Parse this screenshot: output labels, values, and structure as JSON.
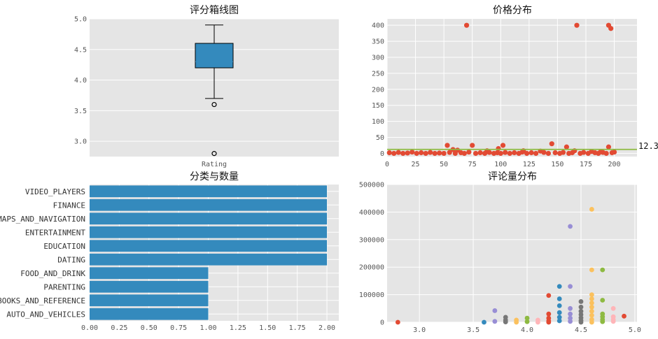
{
  "chart_data": [
    {
      "type": "box",
      "title": "评分箱线图",
      "categories": [
        "Rating"
      ],
      "box": {
        "whisker_low": 3.7,
        "q1": 4.2,
        "median": 4.3,
        "q3": 4.6,
        "whisker_high": 4.9,
        "outliers": [
          3.6,
          2.8
        ]
      },
      "ylim": [
        2.75,
        5.0
      ],
      "yticks": [
        3.0,
        3.5,
        4.0,
        4.5,
        5.0
      ],
      "ytick_labels": [
        "3.0",
        "3.5",
        "4.0",
        "4.5",
        "5.0"
      ],
      "box_color": "#348ABD",
      "grid": true
    },
    {
      "type": "scatter",
      "title": "价格分布",
      "xlim": [
        0,
        220
      ],
      "ylim": [
        -10,
        420
      ],
      "xticks": [
        0,
        25,
        50,
        75,
        100,
        125,
        150,
        175,
        200
      ],
      "xtick_labels": [
        "0",
        "25",
        "50",
        "75",
        "100",
        "125",
        "150",
        "175",
        "200"
      ],
      "yticks": [
        0,
        50,
        100,
        150,
        200,
        250,
        300,
        350,
        400
      ],
      "ytick_labels": [
        "0",
        "50",
        "100",
        "150",
        "200",
        "250",
        "300",
        "350",
        "400"
      ],
      "mean_line": {
        "value": 12.3,
        "label": "12.3",
        "color": "#8EBA42"
      },
      "point_color": "#E24A33",
      "points": [
        [
          70,
          400
        ],
        [
          167,
          400
        ],
        [
          195,
          400
        ],
        [
          197,
          390
        ],
        [
          53,
          25
        ],
        [
          75,
          25
        ],
        [
          102,
          25
        ],
        [
          145,
          30
        ],
        [
          158,
          20
        ],
        [
          195,
          20
        ],
        [
          58,
          12
        ],
        [
          62,
          10
        ],
        [
          88,
          8
        ],
        [
          98,
          15
        ],
        [
          120,
          8
        ],
        [
          135,
          7
        ],
        [
          165,
          8
        ],
        [
          180,
          6
        ],
        [
          188,
          5
        ],
        [
          2,
          2
        ],
        [
          6,
          0
        ],
        [
          10,
          3
        ],
        [
          14,
          0
        ],
        [
          18,
          1
        ],
        [
          22,
          4
        ],
        [
          26,
          0
        ],
        [
          30,
          2
        ],
        [
          34,
          0
        ],
        [
          38,
          3
        ],
        [
          42,
          0
        ],
        [
          46,
          1
        ],
        [
          50,
          0
        ],
        [
          55,
          3
        ],
        [
          60,
          0
        ],
        [
          65,
          2
        ],
        [
          68,
          0
        ],
        [
          72,
          4
        ],
        [
          78,
          0
        ],
        [
          82,
          2
        ],
        [
          86,
          0
        ],
        [
          90,
          3
        ],
        [
          94,
          0
        ],
        [
          97,
          2
        ],
        [
          100,
          0
        ],
        [
          104,
          3
        ],
        [
          108,
          0
        ],
        [
          112,
          2
        ],
        [
          116,
          0
        ],
        [
          119,
          4
        ],
        [
          123,
          0
        ],
        [
          127,
          2
        ],
        [
          131,
          0
        ],
        [
          138,
          3
        ],
        [
          142,
          0
        ],
        [
          148,
          2
        ],
        [
          152,
          0
        ],
        [
          155,
          3
        ],
        [
          160,
          0
        ],
        [
          163,
          2
        ],
        [
          170,
          0
        ],
        [
          173,
          3
        ],
        [
          177,
          0
        ],
        [
          183,
          2
        ],
        [
          186,
          0
        ],
        [
          190,
          3
        ],
        [
          193,
          0
        ],
        [
          198,
          2
        ],
        [
          200,
          4
        ]
      ],
      "grid": true
    },
    {
      "type": "barh",
      "title": "分类与数量",
      "categories": [
        "VIDEO_PLAYERS",
        "FINANCE",
        "MAPS_AND_NAVIGATION",
        "ENTERTAINMENT",
        "EDUCATION",
        "DATING",
        "FOOD_AND_DRINK",
        "PARENTING",
        "BOOKS_AND_REFERENCE",
        "AUTO_AND_VEHICLES"
      ],
      "values": [
        2,
        2,
        2,
        2,
        2,
        2,
        1,
        1,
        1,
        1
      ],
      "xlim": [
        0,
        2.1
      ],
      "xticks": [
        0,
        0.25,
        0.5,
        0.75,
        1.0,
        1.25,
        1.5,
        1.75,
        2.0
      ],
      "xtick_labels": [
        "0.00",
        "0.25",
        "0.50",
        "0.75",
        "1.00",
        "1.25",
        "1.50",
        "1.75",
        "2.00"
      ],
      "bar_color": "#348ABD",
      "grid": true
    },
    {
      "type": "scatter",
      "title": "评论量分布",
      "xlim": [
        2.7,
        5.02
      ],
      "ylim": [
        0,
        500000
      ],
      "xticks": [
        3.0,
        3.5,
        4.0,
        4.5,
        5.0
      ],
      "xtick_labels": [
        "3.0",
        "3.5",
        "4.0",
        "4.5",
        "5.0"
      ],
      "yticks": [
        0,
        100000,
        200000,
        300000,
        400000,
        500000
      ],
      "ytick_labels": [
        "0",
        "100000",
        "200000",
        "300000",
        "400000",
        "500000"
      ],
      "groups": [
        {
          "color": "#E24A33",
          "points": [
            [
              2.8,
              0
            ],
            [
              4.2,
              97000
            ],
            [
              4.2,
              30000
            ],
            [
              4.2,
              15000
            ],
            [
              4.2,
              5000
            ],
            [
              4.2,
              0
            ],
            [
              4.9,
              22000
            ]
          ]
        },
        {
          "color": "#348ABD",
          "points": [
            [
              3.6,
              0
            ],
            [
              4.3,
              130000
            ],
            [
              4.3,
              85000
            ],
            [
              4.3,
              60000
            ],
            [
              4.3,
              35000
            ],
            [
              4.3,
              18000
            ],
            [
              4.3,
              5000
            ]
          ]
        },
        {
          "color": "#988ED5",
          "points": [
            [
              3.7,
              42000
            ],
            [
              3.7,
              3000
            ],
            [
              4.4,
              348000
            ],
            [
              4.4,
              130000
            ],
            [
              4.4,
              50000
            ],
            [
              4.4,
              30000
            ],
            [
              4.4,
              15000
            ],
            [
              4.4,
              3000
            ]
          ]
        },
        {
          "color": "#777777",
          "points": [
            [
              3.8,
              18000
            ],
            [
              3.8,
              8000
            ],
            [
              3.8,
              1000
            ],
            [
              4.5,
              75000
            ],
            [
              4.5,
              55000
            ],
            [
              4.5,
              40000
            ],
            [
              4.5,
              28000
            ],
            [
              4.5,
              16000
            ],
            [
              4.5,
              6000
            ],
            [
              4.5,
              0
            ]
          ]
        },
        {
          "color": "#FBC15E",
          "points": [
            [
              3.9,
              8000
            ],
            [
              3.9,
              0
            ],
            [
              4.6,
              410000
            ],
            [
              4.6,
              190000
            ],
            [
              4.6,
              100000
            ],
            [
              4.6,
              85000
            ],
            [
              4.6,
              70000
            ],
            [
              4.6,
              55000
            ],
            [
              4.6,
              40000
            ],
            [
              4.6,
              25000
            ],
            [
              4.6,
              10000
            ],
            [
              4.6,
              0
            ]
          ]
        },
        {
          "color": "#8EBA42",
          "points": [
            [
              4.0,
              15000
            ],
            [
              4.0,
              2000
            ],
            [
              4.7,
              190000
            ],
            [
              4.7,
              80000
            ],
            [
              4.7,
              30000
            ],
            [
              4.7,
              20000
            ],
            [
              4.7,
              10000
            ],
            [
              4.7,
              2000
            ]
          ]
        },
        {
          "color": "#FFB5B8",
          "points": [
            [
              4.1,
              8000
            ],
            [
              4.1,
              0
            ],
            [
              4.8,
              50000
            ],
            [
              4.8,
              20000
            ],
            [
              4.8,
              10000
            ],
            [
              4.8,
              3000
            ]
          ]
        }
      ],
      "grid": true
    }
  ]
}
